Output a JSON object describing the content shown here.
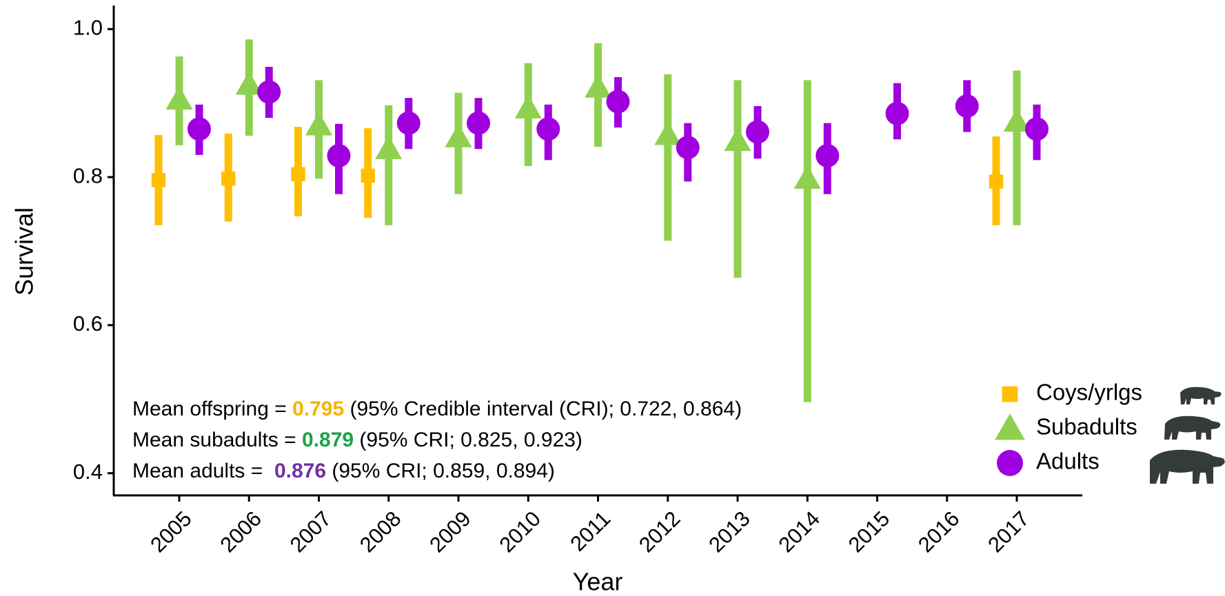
{
  "chart_data": {
    "type": "errorbar",
    "x_label": "Year",
    "y_label": "Survival",
    "categories": [
      "2005",
      "2006",
      "2007",
      "2008",
      "2009",
      "2010",
      "2011",
      "2012",
      "2013",
      "2014",
      "2015",
      "2016",
      "2017"
    ],
    "ylim": [
      0.37,
      1.03
    ],
    "yticks": [
      0.4,
      0.6,
      0.8,
      {
        "value": 1.0,
        "label": "1.0"
      }
    ],
    "legend_position": "lower right",
    "grid": false,
    "series": [
      {
        "name": "Coys/yrlgs",
        "color": "#ffbf00",
        "marker": "square",
        "values": [
          0.796,
          0.798,
          0.804,
          0.802,
          null,
          null,
          null,
          null,
          null,
          null,
          null,
          null,
          0.794
        ],
        "lower": [
          0.735,
          0.74,
          0.747,
          0.745,
          null,
          null,
          null,
          null,
          null,
          null,
          null,
          null,
          0.735
        ],
        "upper": [
          0.857,
          0.859,
          0.868,
          0.866,
          null,
          null,
          null,
          null,
          null,
          null,
          null,
          null,
          0.855
        ]
      },
      {
        "name": "Subadults",
        "color": "#8fd14f",
        "marker": "triangle",
        "values": [
          0.905,
          0.925,
          0.87,
          0.838,
          0.854,
          0.893,
          0.921,
          0.857,
          0.849,
          0.798,
          null,
          null,
          0.875
        ],
        "lower": [
          0.843,
          0.856,
          0.798,
          0.735,
          0.777,
          0.815,
          0.841,
          0.714,
          0.664,
          0.496,
          null,
          null,
          0.735
        ],
        "upper": [
          0.963,
          0.986,
          0.931,
          0.897,
          0.914,
          0.954,
          0.981,
          0.939,
          0.931,
          0.931,
          null,
          null,
          0.944
        ]
      },
      {
        "name": "Adults",
        "color": "#a000e0",
        "marker": "circle",
        "values": [
          0.865,
          0.915,
          0.829,
          0.873,
          0.873,
          0.865,
          0.902,
          0.84,
          0.861,
          0.829,
          0.886,
          0.896,
          0.865
        ],
        "lower": [
          0.83,
          0.88,
          0.777,
          0.838,
          0.838,
          0.823,
          0.867,
          0.794,
          0.825,
          0.777,
          0.851,
          0.861,
          0.823
        ],
        "upper": [
          0.898,
          0.949,
          0.872,
          0.907,
          0.907,
          0.898,
          0.935,
          0.873,
          0.896,
          0.873,
          0.927,
          0.931,
          0.898
        ]
      }
    ],
    "annotations": [
      {
        "prefix": "Mean offspring = ",
        "value": "0.795",
        "color": "#f5b400",
        "suffix": " (95% Credible interval (CRI); 0.722, 0.864)"
      },
      {
        "prefix": "Mean subadults = ",
        "value": "0.879",
        "color": "#1aa34a",
        "suffix": " (95% CRI; 0.825, 0.923)"
      },
      {
        "prefix": "Mean adults =  ",
        "value": "0.876",
        "color": "#7030a0",
        "suffix": " (95% CRI; 0.859, 0.894)"
      }
    ]
  }
}
